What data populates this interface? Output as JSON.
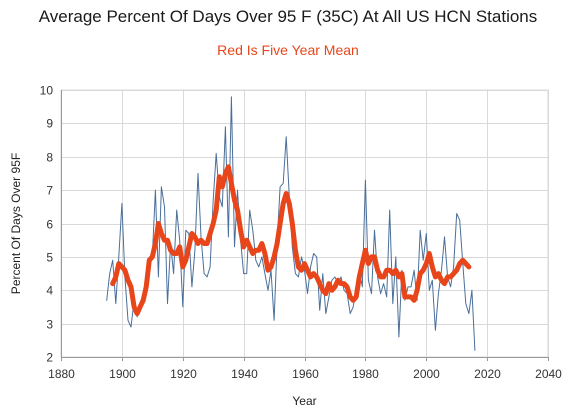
{
  "chart_data": {
    "type": "line",
    "title": "Average Percent Of Days Over 95 F (35C) At All US HCN Stations",
    "subtitle": "Red Is Five Year Mean",
    "xlabel": "Year",
    "ylabel": "Percent Of Days Over 95F",
    "xlim": [
      1880,
      2040
    ],
    "ylim": [
      2,
      10
    ],
    "x_ticks": [
      1880,
      1900,
      1920,
      1940,
      1960,
      1980,
      2000,
      2020,
      2040
    ],
    "y_ticks": [
      2,
      3,
      4,
      5,
      6,
      7,
      8,
      9,
      10
    ],
    "grid": true,
    "colors": {
      "annual": "#4a6f9a",
      "mean": "#e8461a",
      "grid": "#d9d9d9",
      "axis": "#999999"
    },
    "series": [
      {
        "key": "annual",
        "x": [
          1895,
          1896,
          1897,
          1898,
          1899,
          1900,
          1901,
          1902,
          1903,
          1904,
          1905,
          1906,
          1907,
          1908,
          1909,
          1910,
          1911,
          1912,
          1913,
          1914,
          1915,
          1916,
          1917,
          1918,
          1919,
          1920,
          1921,
          1922,
          1923,
          1924,
          1925,
          1926,
          1927,
          1928,
          1929,
          1930,
          1931,
          1932,
          1933,
          1934,
          1935,
          1936,
          1937,
          1938,
          1939,
          1940,
          1941,
          1942,
          1943,
          1944,
          1945,
          1946,
          1947,
          1948,
          1949,
          1950,
          1951,
          1952,
          1953,
          1954,
          1955,
          1956,
          1957,
          1958,
          1959,
          1960,
          1961,
          1962,
          1963,
          1964,
          1965,
          1966,
          1967,
          1968,
          1969,
          1970,
          1971,
          1972,
          1973,
          1974,
          1975,
          1976,
          1977,
          1978,
          1979,
          1980,
          1981,
          1982,
          1983,
          1984,
          1985,
          1986,
          1987,
          1988,
          1989,
          1990,
          1991,
          1992,
          1993,
          1994,
          1995,
          1996,
          1997,
          1998,
          1999,
          2000,
          2001,
          2002,
          2003,
          2004,
          2005,
          2006,
          2007,
          2008,
          2009,
          2010,
          2011,
          2012,
          2013,
          2014,
          2015,
          2016
        ],
        "values": [
          3.7,
          4.5,
          4.9,
          3.6,
          5.0,
          6.6,
          4.4,
          3.1,
          2.9,
          3.7,
          3.2,
          3.6,
          3.9,
          4.3,
          4.8,
          5.0,
          7.0,
          4.4,
          7.1,
          6.5,
          3.6,
          5.4,
          4.5,
          6.4,
          5.5,
          3.5,
          5.8,
          5.7,
          4.1,
          5.2,
          7.5,
          5.6,
          4.5,
          4.4,
          4.7,
          6.7,
          8.1,
          6.8,
          6.5,
          8.9,
          5.6,
          9.8,
          5.3,
          7.0,
          5.5,
          4.5,
          4.5,
          6.4,
          5.8,
          4.9,
          4.7,
          5.0,
          4.5,
          4.0,
          4.6,
          3.1,
          5.4,
          7.1,
          7.2,
          8.6,
          6.8,
          5.3,
          4.5,
          4.4,
          5.0,
          4.6,
          3.9,
          4.7,
          5.1,
          5.0,
          3.4,
          4.5,
          3.3,
          3.8,
          4.3,
          4.4,
          4.2,
          4.4,
          4.0,
          3.9,
          3.3,
          3.5,
          4.1,
          4.6,
          4.1,
          7.3,
          4.3,
          3.9,
          5.8,
          4.4,
          3.9,
          4.2,
          3.8,
          6.4,
          3.6,
          5.0,
          2.6,
          4.6,
          3.7,
          4.1,
          4.1,
          4.6,
          3.7,
          5.8,
          4.9,
          5.7,
          4.0,
          4.3,
          2.8,
          3.9,
          4.6,
          5.6,
          4.4,
          4.1,
          4.7,
          6.3,
          6.1,
          4.8,
          3.6,
          3.3,
          4.0,
          2.2
        ]
      },
      {
        "key": "five_year_mean",
        "x": [
          1897,
          1898,
          1899,
          1900,
          1901,
          1902,
          1903,
          1904,
          1905,
          1906,
          1907,
          1908,
          1909,
          1910,
          1911,
          1912,
          1913,
          1914,
          1915,
          1916,
          1917,
          1918,
          1919,
          1920,
          1921,
          1922,
          1923,
          1924,
          1925,
          1926,
          1927,
          1928,
          1929,
          1930,
          1931,
          1932,
          1933,
          1934,
          1935,
          1936,
          1937,
          1938,
          1939,
          1940,
          1941,
          1942,
          1943,
          1944,
          1945,
          1946,
          1947,
          1948,
          1949,
          1950,
          1951,
          1952,
          1953,
          1954,
          1955,
          1956,
          1957,
          1958,
          1959,
          1960,
          1961,
          1962,
          1963,
          1964,
          1965,
          1966,
          1967,
          1968,
          1969,
          1970,
          1971,
          1972,
          1973,
          1974,
          1975,
          1976,
          1977,
          1978,
          1979,
          1980,
          1981,
          1982,
          1983,
          1984,
          1985,
          1986,
          1987,
          1988,
          1989,
          1990,
          1991,
          1992,
          1993,
          1994,
          1995,
          1996,
          1997,
          1998,
          1999,
          2000,
          2001,
          2002,
          2003,
          2004,
          2005,
          2006,
          2007,
          2008,
          2009,
          2010,
          2011,
          2012,
          2013,
          2014
        ],
        "values": [
          4.2,
          4.4,
          4.8,
          4.7,
          4.6,
          4.3,
          4.1,
          3.5,
          3.3,
          3.5,
          3.7,
          4.1,
          4.9,
          5.0,
          5.4,
          6.0,
          5.7,
          5.5,
          5.5,
          5.2,
          5.1,
          5.1,
          5.3,
          4.7,
          4.9,
          5.3,
          5.7,
          5.6,
          5.4,
          5.5,
          5.4,
          5.4,
          5.7,
          6.0,
          6.4,
          7.4,
          7.1,
          7.5,
          7.7,
          7.2,
          6.7,
          6.4,
          5.8,
          5.3,
          5.5,
          5.3,
          5.1,
          5.2,
          5.2,
          5.4,
          5.1,
          4.6,
          4.7,
          5.0,
          5.4,
          6.0,
          6.6,
          6.9,
          6.6,
          6.0,
          5.2,
          4.7,
          4.6,
          4.8,
          4.6,
          4.4,
          4.5,
          4.4,
          4.2,
          4.0,
          3.9,
          4.2,
          4.0,
          4.1,
          4.3,
          4.2,
          4.2,
          4.1,
          3.8,
          3.7,
          3.8,
          4.4,
          4.8,
          5.2,
          4.8,
          5.0,
          5.0,
          4.6,
          4.4,
          4.4,
          4.6,
          4.6,
          4.5,
          4.6,
          4.4,
          4.5,
          3.8,
          3.8,
          3.8,
          3.7,
          4.0,
          4.5,
          4.6,
          4.8,
          5.1,
          4.7,
          4.4,
          4.5,
          4.3,
          4.2,
          4.4,
          4.4,
          4.5,
          4.6,
          4.8,
          4.9,
          4.8,
          4.7
        ]
      }
    ]
  }
}
